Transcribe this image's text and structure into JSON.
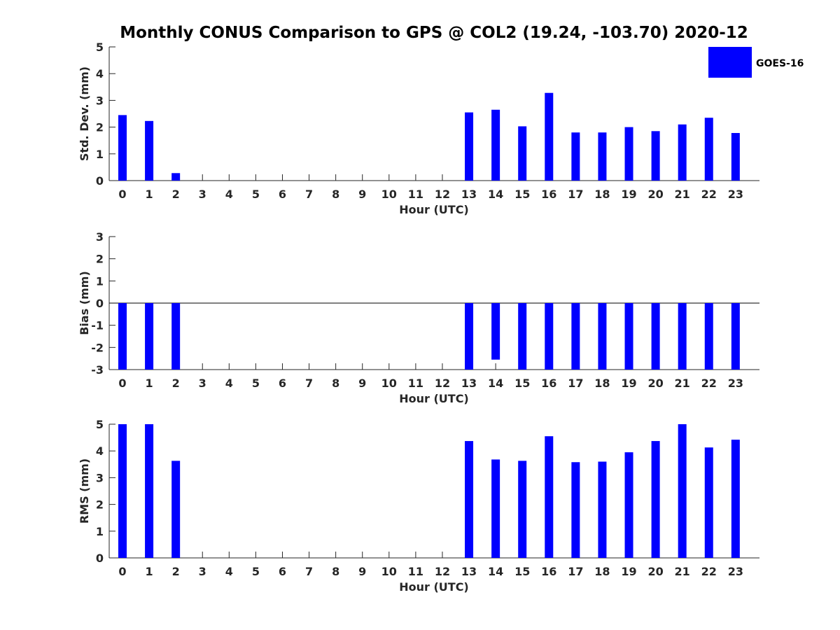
{
  "chart_data": {
    "type": "bar",
    "title": "Monthly CONUS Comparison to GPS @ COL2 (19.24, -103.70) 2020-12",
    "legend": {
      "label": "GOES-16",
      "placement": "top-right"
    },
    "bar_color": "#0000ff",
    "categories": [
      "0",
      "1",
      "2",
      "3",
      "4",
      "5",
      "6",
      "7",
      "8",
      "9",
      "10",
      "11",
      "12",
      "13",
      "14",
      "15",
      "16",
      "17",
      "18",
      "19",
      "20",
      "21",
      "22",
      "23"
    ],
    "panels": [
      {
        "ylabel": "Std. Dev. (mm)",
        "xlabel": "Hour (UTC)",
        "ylim": [
          0,
          5
        ],
        "yticks": [
          "0",
          "1",
          "2",
          "3",
          "4",
          "5"
        ],
        "values": [
          2.45,
          2.23,
          0.28,
          null,
          null,
          null,
          null,
          null,
          null,
          null,
          null,
          null,
          null,
          2.55,
          2.65,
          2.03,
          3.28,
          1.8,
          1.8,
          2.0,
          1.85,
          2.1,
          2.35,
          1.78
        ]
      },
      {
        "ylabel": "Bias (mm)",
        "xlabel": "Hour (UTC)",
        "ylim": [
          -3,
          3
        ],
        "yticks": [
          "-3",
          "-2",
          "-1",
          "0",
          "1",
          "2",
          "3"
        ],
        "zero_line": true,
        "values": [
          -3.0,
          -3.0,
          -3.0,
          null,
          null,
          null,
          null,
          null,
          null,
          null,
          null,
          null,
          null,
          -3.0,
          -2.55,
          -3.0,
          -3.0,
          -3.0,
          -3.0,
          -3.0,
          -3.0,
          -3.0,
          -3.0,
          -3.0
        ]
      },
      {
        "ylabel": "RMS (mm)",
        "xlabel": "Hour (UTC)",
        "ylim": [
          0,
          5
        ],
        "yticks": [
          "0",
          "1",
          "2",
          "3",
          "4",
          "5"
        ],
        "values": [
          5.0,
          5.0,
          3.63,
          null,
          null,
          null,
          null,
          null,
          null,
          null,
          null,
          null,
          null,
          4.37,
          3.68,
          3.63,
          4.55,
          3.58,
          3.6,
          3.95,
          4.37,
          5.0,
          4.13,
          4.42
        ]
      }
    ]
  }
}
